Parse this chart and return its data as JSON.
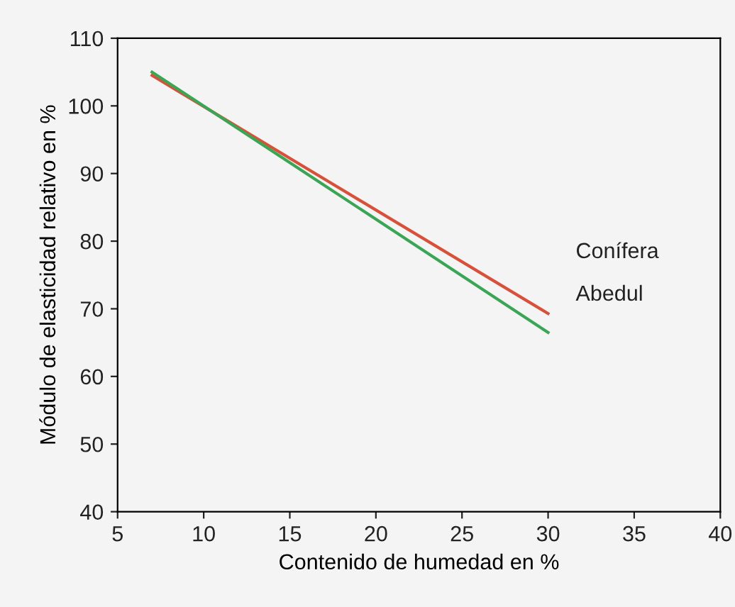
{
  "chart_data": {
    "type": "line",
    "xlabel": "Contenido de humedad en %",
    "ylabel": "Módulo de elasticidad relativo en %",
    "x": [
      7,
      30
    ],
    "series": [
      {
        "name": "Conífera",
        "color": "#d9503a",
        "values": [
          104.5,
          69.3
        ]
      },
      {
        "name": "Abedul",
        "color": "#3aa655",
        "values": [
          105,
          66.5
        ]
      }
    ],
    "xlim": [
      5,
      40
    ],
    "xticks": [
      5,
      10,
      15,
      20,
      25,
      30,
      35,
      40
    ],
    "ylim": [
      40,
      110
    ],
    "yticks": [
      40,
      50,
      60,
      70,
      80,
      90,
      100,
      110
    ],
    "grid": false,
    "legend": false,
    "marker": "none",
    "line_style": "solid"
  }
}
